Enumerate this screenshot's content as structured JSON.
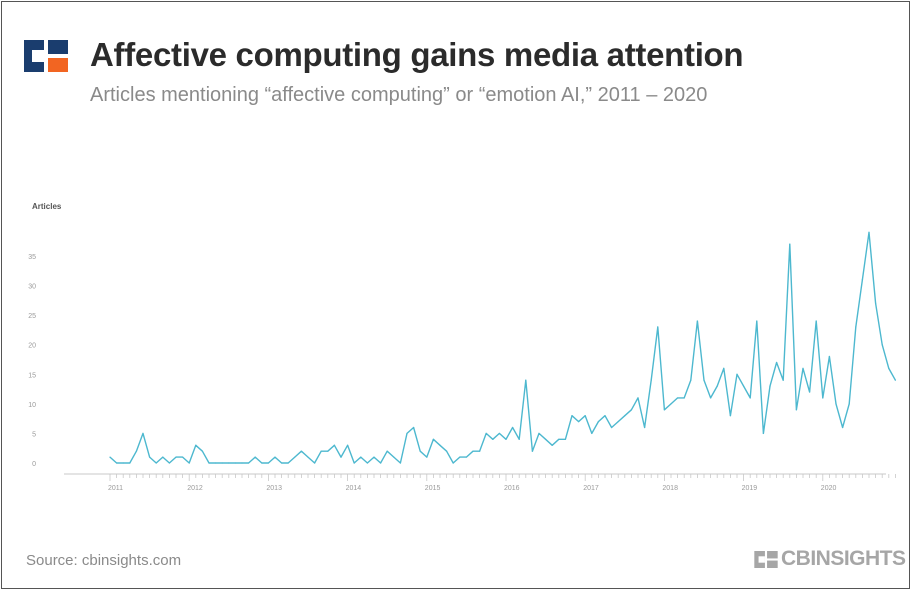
{
  "header": {
    "title": "Affective computing gains media attention",
    "subtitle": "Articles mentioning “affective computing” or “emotion AI,” 2011 – 2020"
  },
  "footer": {
    "source": "Source: cbinsights.com",
    "brand": "CBINSIGHTS"
  },
  "colors": {
    "line": "#4db8cf",
    "logo_blue": "#1a3d6e",
    "logo_orange": "#f26522"
  },
  "chart_data": {
    "type": "line",
    "title": "Affective computing gains media attention",
    "ylabel": "Articles",
    "xlabel": "",
    "ylim": [
      0,
      40
    ],
    "yticks": [
      0,
      5,
      10,
      15,
      20,
      25,
      30,
      35
    ],
    "year_labels": [
      "2011",
      "2012",
      "2013",
      "2014",
      "2015",
      "2016",
      "2017",
      "2018",
      "2019",
      "2020"
    ],
    "series": [
      {
        "name": "Articles",
        "frequency": "monthly",
        "start": "2011-01",
        "values": [
          1,
          0,
          0,
          0,
          2,
          5,
          1,
          0,
          1,
          0,
          1,
          1,
          0,
          3,
          2,
          0,
          0,
          0,
          0,
          0,
          0,
          0,
          1,
          0,
          0,
          1,
          0,
          0,
          1,
          2,
          1,
          0,
          2,
          2,
          3,
          1,
          3,
          0,
          1,
          0,
          1,
          0,
          2,
          1,
          0,
          5,
          6,
          2,
          1,
          4,
          3,
          2,
          0,
          1,
          1,
          2,
          2,
          5,
          4,
          5,
          4,
          6,
          4,
          14,
          2,
          5,
          4,
          3,
          4,
          4,
          8,
          7,
          8,
          5,
          7,
          8,
          6,
          7,
          8,
          9,
          11,
          6,
          14,
          23,
          9,
          10,
          11,
          11,
          14,
          24,
          14,
          11,
          13,
          16,
          8,
          15,
          13,
          11,
          24,
          5,
          13,
          17,
          14,
          37,
          9,
          16,
          12,
          24,
          11,
          18,
          10,
          6,
          10,
          23,
          31,
          39,
          27,
          20,
          16,
          14
        ]
      }
    ]
  }
}
